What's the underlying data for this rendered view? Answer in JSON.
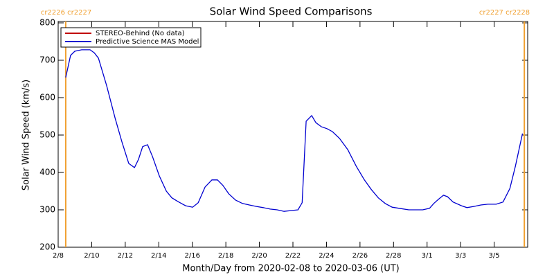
{
  "chart_data": {
    "type": "line",
    "title": "Solar Wind Speed Comparisons",
    "xlabel": "Month/Day from 2020-02-08 to 2020-03-06 (UT)",
    "ylabel": "Solar Wind Speed (km/s)",
    "xlim": [
      0,
      28
    ],
    "xticks": [
      {
        "value": 0,
        "label": "2/8"
      },
      {
        "value": 2,
        "label": "2/10"
      },
      {
        "value": 4,
        "label": "2/12"
      },
      {
        "value": 6,
        "label": "2/14"
      },
      {
        "value": 8,
        "label": "2/16"
      },
      {
        "value": 10,
        "label": "2/18"
      },
      {
        "value": 12,
        "label": "2/20"
      },
      {
        "value": 14,
        "label": "2/22"
      },
      {
        "value": 16,
        "label": "2/24"
      },
      {
        "value": 18,
        "label": "2/26"
      },
      {
        "value": 20,
        "label": "2/28"
      },
      {
        "value": 22,
        "label": "3/1"
      },
      {
        "value": 24,
        "label": "3/3"
      },
      {
        "value": 26,
        "label": "3/5"
      }
    ],
    "ylim": [
      200,
      800
    ],
    "yticks": [
      200,
      300,
      400,
      500,
      600,
      700,
      800
    ],
    "markers": [
      {
        "x": 0.45,
        "label": "cr2226 cr2227",
        "color": "#f0a030"
      },
      {
        "x": 27.8,
        "label": "cr2227 cr2228",
        "color": "#f0a030"
      }
    ],
    "x": [
      0.45,
      0.74,
      0.99,
      1.4,
      1.9,
      2.15,
      2.4,
      2.89,
      3.39,
      3.8,
      4.21,
      4.55,
      4.79,
      5.04,
      5.33,
      5.62,
      6.03,
      6.45,
      6.78,
      7.19,
      7.6,
      8.02,
      8.35,
      8.76,
      9.17,
      9.5,
      9.83,
      10.17,
      10.58,
      10.99,
      11.4,
      11.82,
      12.23,
      12.64,
      13.06,
      13.47,
      13.88,
      14.3,
      14.55,
      14.79,
      15.12,
      15.37,
      15.7,
      16.03,
      16.36,
      16.78,
      17.27,
      17.77,
      18.26,
      18.68,
      19.09,
      19.5,
      19.92,
      20.33,
      20.91,
      21.74,
      22.15,
      22.4,
      22.73,
      22.98,
      23.22,
      23.55,
      24.05,
      24.38,
      24.79,
      25.21,
      25.62,
      26.12,
      26.53,
      26.94,
      27.27,
      27.52,
      27.69
    ],
    "series": [
      {
        "name": "STEREO-Behind (No data)",
        "color": "#c00000"
      },
      {
        "name": "Predictive Science MAS Model",
        "color": "#0000d0",
        "values": [
          654,
          713,
          724,
          728,
          728,
          720,
          706,
          632,
          546,
          482,
          424,
          413,
          435,
          469,
          474,
          443,
          391,
          350,
          332,
          321,
          311,
          307,
          319,
          361,
          380,
          380,
          365,
          343,
          326,
          317,
          313,
          309,
          306,
          302,
          300,
          296,
          298,
          300,
          319,
          537,
          552,
          533,
          522,
          517,
          509,
          491,
          461,
          417,
          380,
          354,
          332,
          317,
          307,
          304,
          300,
          300,
          304,
          317,
          330,
          339,
          335,
          321,
          311,
          306,
          309,
          313,
          315,
          315,
          321,
          357,
          417,
          469,
          504
        ]
      }
    ]
  }
}
